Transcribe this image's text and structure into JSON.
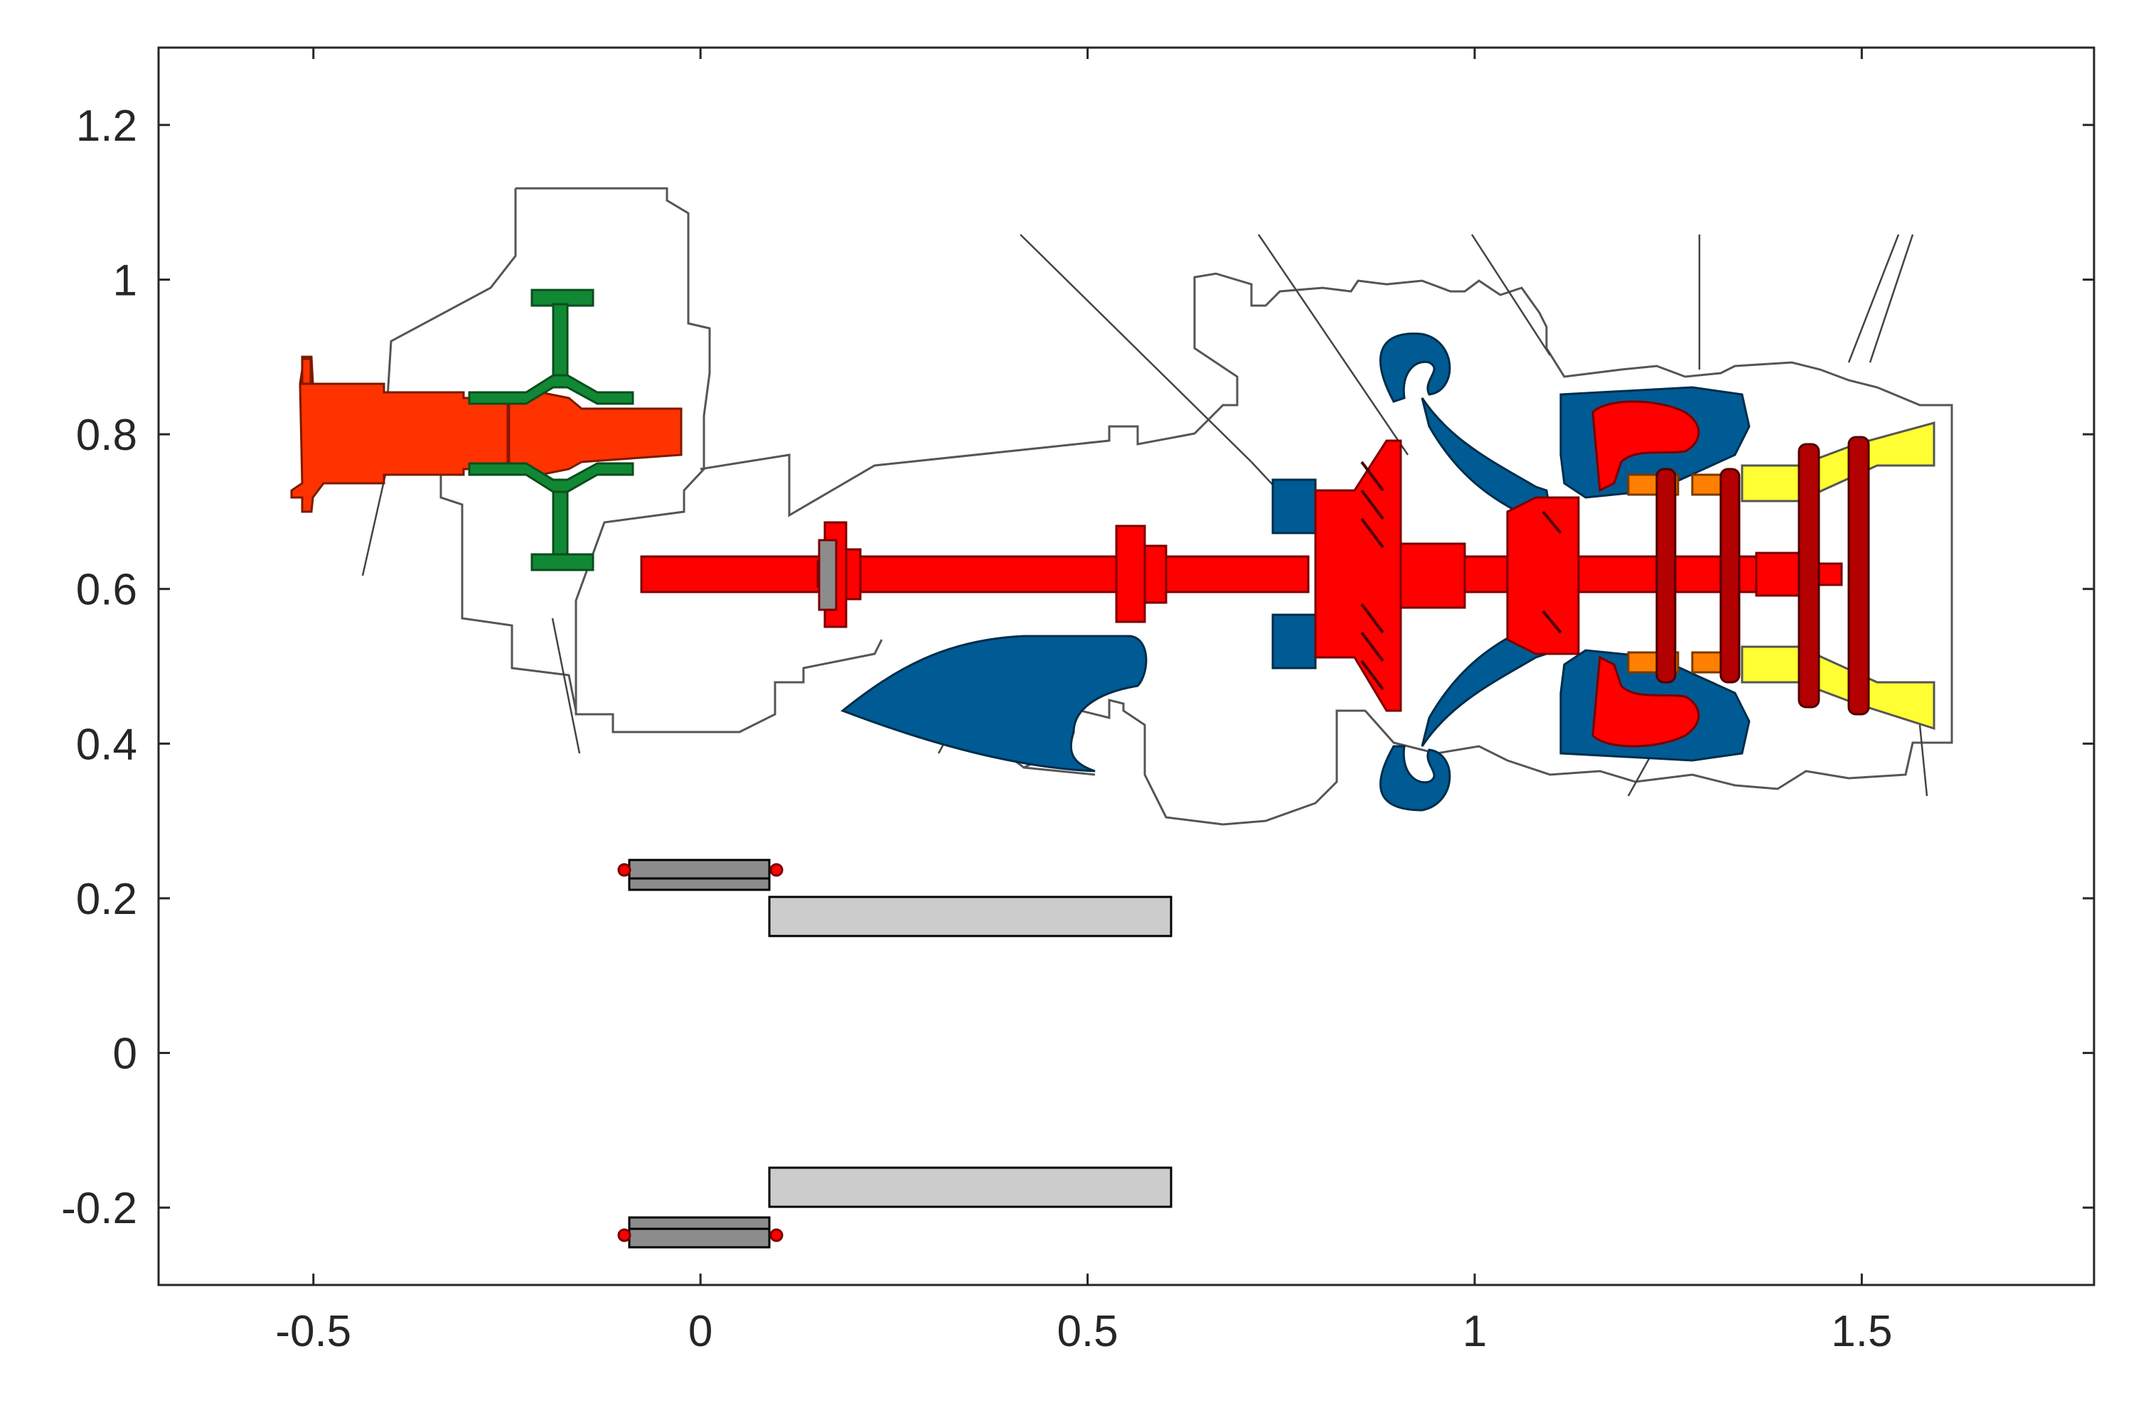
{
  "figure": {
    "x_axis": {
      "min": -0.7,
      "max": 1.8,
      "ticks": [
        {
          "value": -0.5,
          "label": "-0.5"
        },
        {
          "value": 0,
          "label": "0"
        },
        {
          "value": 0.5,
          "label": "0.5"
        },
        {
          "value": 1,
          "label": "1"
        },
        {
          "value": 1.5,
          "label": "1.5"
        }
      ]
    },
    "y_axis": {
      "min": -0.3,
      "max": 1.3,
      "ticks": [
        {
          "value": 1.2,
          "label": "1.2"
        },
        {
          "value": 1,
          "label": "1"
        },
        {
          "value": 0.8,
          "label": "0.8"
        },
        {
          "value": 0.6,
          "label": "0.6"
        },
        {
          "value": 0.4,
          "label": "0.4"
        },
        {
          "value": 0.2,
          "label": "0.2"
        },
        {
          "value": 0,
          "label": "0"
        },
        {
          "value": -0.2,
          "label": "-0.2"
        }
      ]
    },
    "grid": false,
    "box": true
  },
  "colors": {
    "axis": "#262626",
    "shaft_red": "#ff0000",
    "propeller_orange": "#ff3300",
    "gear_green": "#118833",
    "casing_blue": "#005b94",
    "nozzle_yellow": "#ffff33",
    "combustor_orange": "#ff7f00",
    "mount_dark_gray": "#8c8c8c",
    "mount_light_gray": "#cccccc",
    "outline_gray": "#555555",
    "hatch_dark": "#7a0000"
  },
  "diagram": {
    "subject": "turboprop engine cross-section",
    "components": [
      "propeller hub",
      "reduction gear",
      "drive shaft",
      "air intake",
      "compressor",
      "combustor",
      "turbine",
      "exhaust nozzle",
      "mount struts"
    ]
  }
}
